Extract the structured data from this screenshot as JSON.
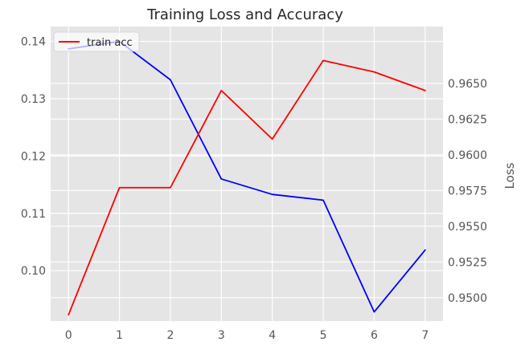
{
  "chart_data": {
    "type": "line",
    "title": "Training Loss and Accuracy",
    "xlabel": "",
    "ylabel_left": "",
    "ylabel_right": "Loss",
    "grid": true,
    "legend_position": "top-left",
    "x": [
      0,
      1,
      2,
      3,
      4,
      5,
      6,
      7
    ],
    "xlim": [
      -0.35,
      7.35
    ],
    "x_ticks": [
      "0",
      "1",
      "2",
      "3",
      "4",
      "5",
      "6",
      "7"
    ],
    "left_axis": {
      "ylim": [
        0.0912,
        0.1426
      ],
      "ticks": [
        0.1,
        0.11,
        0.12,
        0.13,
        0.14
      ],
      "tick_labels": [
        "0.10",
        "0.11",
        "0.12",
        "0.13",
        "0.14"
      ]
    },
    "right_axis": {
      "ylim": [
        0.94836,
        0.96898
      ],
      "ticks": [
        0.95,
        0.9525,
        0.955,
        0.9575,
        0.96,
        0.9625,
        0.965
      ],
      "tick_labels": [
        "0.9500",
        "0.9525",
        "0.9550",
        "0.9575",
        "0.9600",
        "0.9625",
        "0.9650"
      ]
    },
    "series": [
      {
        "name": "",
        "axis": "left",
        "color": "#0000ff",
        "values": [
          0.1387,
          0.14,
          0.1333,
          0.116,
          0.1133,
          0.1123,
          0.0928,
          0.1036
        ]
      },
      {
        "name": "train acc",
        "axis": "right",
        "color": "#ff0000",
        "values": [
          0.9488,
          0.9577,
          0.9577,
          0.9645,
          0.9611,
          0.9666,
          0.9658,
          0.9645
        ]
      }
    ],
    "colors": {
      "plot_background": "#e5e5e5",
      "grid": "#ffffff"
    }
  }
}
